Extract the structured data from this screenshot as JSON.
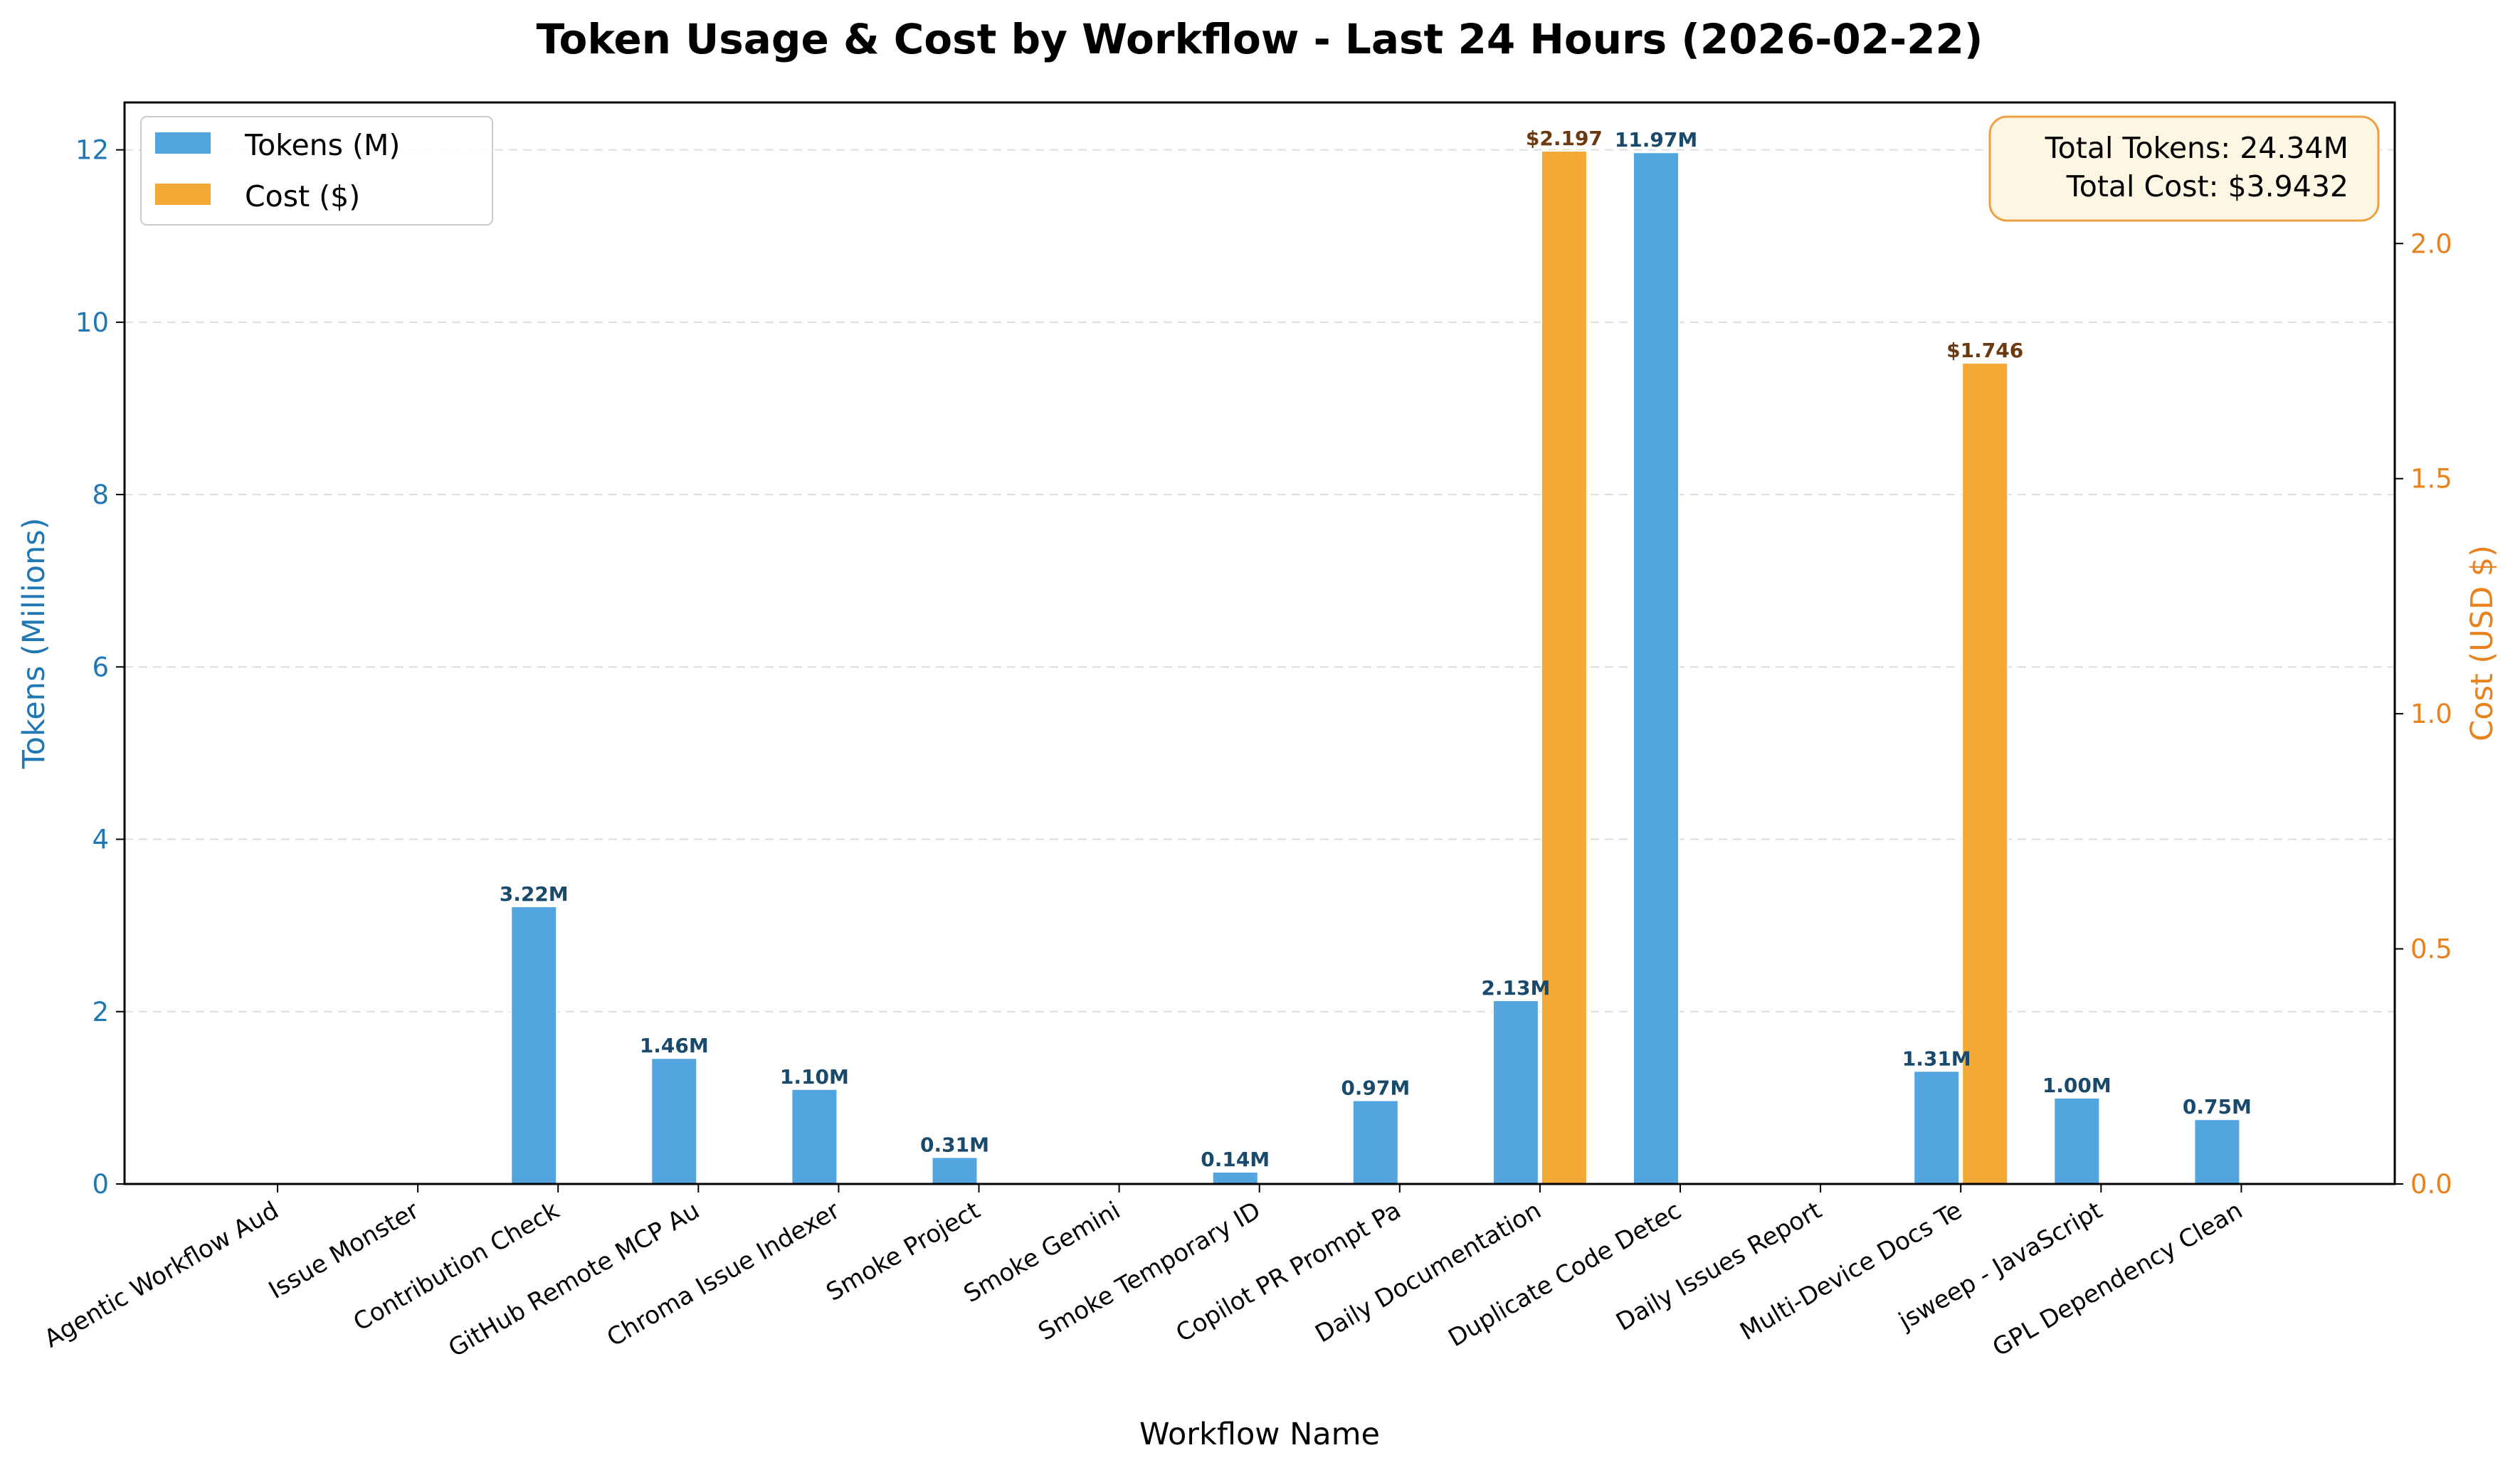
{
  "chart_data": {
    "type": "bar",
    "title": "Token Usage & Cost by Workflow - Last 24 Hours (2026-02-22)",
    "xlabel": "Workflow Name",
    "ylabel_left": "Tokens (Millions)",
    "ylabel_right": "Cost (USD $)",
    "ylim_left": [
      0,
      12.55
    ],
    "ylim_right": [
      0,
      2.3
    ],
    "yticks_left": [
      "0",
      "2",
      "4",
      "6",
      "8",
      "10",
      "12"
    ],
    "yticks_right": [
      "0.0",
      "0.5",
      "1.0",
      "1.5",
      "2.0"
    ],
    "grid": "horizontal dashed",
    "legend_position": "top-left",
    "categories": [
      "Agentic Workflow Aud",
      "Issue Monster",
      "Contribution Check",
      "GitHub Remote MCP Au",
      "Chroma Issue Indexer",
      "Smoke Project",
      "Smoke Gemini",
      "Smoke Temporary ID",
      "Copilot PR Prompt Pa",
      "Daily Documentation",
      "Duplicate Code Detec",
      "Daily Issues Report",
      "Multi-Device Docs Te",
      "jsweep - JavaScript",
      "GPL Dependency Clean"
    ],
    "series": [
      {
        "name": "Tokens (M)",
        "axis": "left",
        "color": "#52a5df",
        "values": [
          0,
          0,
          3.22,
          1.46,
          1.1,
          0.31,
          0,
          0.14,
          0.97,
          2.13,
          11.97,
          0,
          1.31,
          1.0,
          0.75
        ],
        "labels": [
          "",
          "",
          "3.22M",
          "1.46M",
          "1.10M",
          "0.31M",
          "",
          "0.14M",
          "0.97M",
          "2.13M",
          "11.97M",
          "",
          "1.31M",
          "1.00M",
          "0.75M"
        ]
      },
      {
        "name": "Cost ($)",
        "axis": "right",
        "color": "#f4a836",
        "values": [
          0,
          0,
          0,
          0,
          0,
          0,
          0,
          0,
          0,
          2.197,
          0,
          0,
          1.746,
          0,
          0
        ],
        "labels": [
          "",
          "",
          "",
          "",
          "",
          "",
          "",
          "",
          "",
          "$2.197",
          "",
          "",
          "$1.746",
          "",
          ""
        ]
      }
    ],
    "summary": {
      "total_tokens": "Total Tokens: 24.34M",
      "total_cost": "Total Cost: $3.9432"
    }
  }
}
